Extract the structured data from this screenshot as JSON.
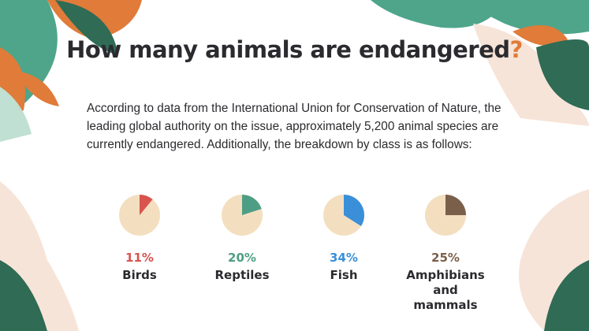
{
  "title": {
    "text": "How many animals are endangered",
    "mark": "?"
  },
  "body": "According to data from the International Union for Conservation of Nature, the leading global authority on the issue, approximately 5,200 animal species are currently endangered. Additionally, the breakdown by class is as follows:",
  "colors": {
    "pie_base": "#f3dfbf",
    "dark_green": "#2f6b55",
    "teal": "#4ea58a",
    "orange": "#e07b39",
    "peach": "#f7e4d8"
  },
  "chart_data": {
    "type": "pie",
    "charts": [
      {
        "label": "Birds",
        "percent_label": "11%",
        "value": 11,
        "color": "#d9534f"
      },
      {
        "label": "Reptiles",
        "percent_label": "20%",
        "value": 20,
        "color": "#4e9e85"
      },
      {
        "label": "Fish",
        "percent_label": "34%",
        "value": 34,
        "color": "#3a8fd8"
      },
      {
        "label": "Amphibians and mammals",
        "percent_label": "25%",
        "value": 25,
        "color": "#7a5f4b"
      }
    ]
  }
}
